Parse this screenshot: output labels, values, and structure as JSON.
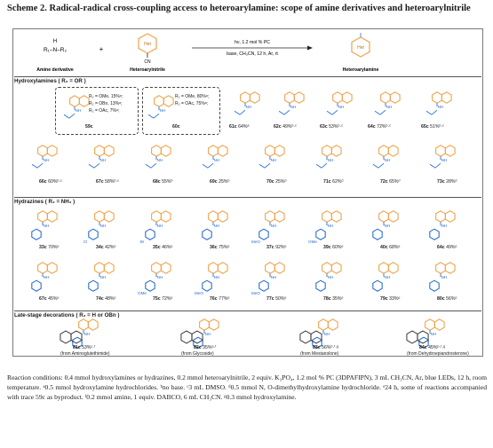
{
  "title": "Scheme 2. Radical-radical cross-coupling access to heteroarylamine: scope of amine derivatives and heteroarylnitrile",
  "header": {
    "amine_label": "Amine derivative",
    "nitrile_label": "Heteroarylnitrile",
    "product_label": "Heteroarylamine",
    "cond_top": "hν, 1.2 mol % PC",
    "cond_bottom": "base, CH₃CN, 12 h, Ar, rt",
    "plus": "+",
    "amine_formula": "R₁–N–R₂",
    "amine_h": "H",
    "cn": "CN",
    "het": "Het",
    "nh": "N"
  },
  "sections": {
    "hydroxylamines": "Hydroxylamines ( R₂ = OR )",
    "hydrazines": "Hydrazines ( R₂ = NH₂ )",
    "late_stage": "Late-stage decorations ( R₂ = H or OBn )"
  },
  "row1": [
    {
      "id": "59c",
      "r": [
        "R₂ = OMe, 15%ᵃ;",
        "R₂ = OBn, 13%ᵃ;",
        "R₂ = OAc, 7%ᵃ;"
      ]
    },
    {
      "id": "60c",
      "r": [
        "R₂ = OMe, 80%ᵃ;",
        "R₂ = OAc, 75%ᵃ;",
        ""
      ]
    },
    {
      "id": "61c",
      "y": "64%ᵃ"
    },
    {
      "id": "62c",
      "y": "49%ᵇ·ᶜ"
    },
    {
      "id": "63c",
      "y": "53%ᵇ·ᶜ"
    },
    {
      "id": "64c",
      "y": "72%ᵇ·ᶜ"
    },
    {
      "id": "65c",
      "y": "51%ᵇ·ᶜ"
    }
  ],
  "row2": [
    {
      "id": "66c",
      "y": "60%ᵇ·ᶜ"
    },
    {
      "id": "67c",
      "y": "58%ᵇ·ᶜ"
    },
    {
      "id": "68c",
      "y": "55%ᵇ"
    },
    {
      "id": "69c",
      "y": "25%ᵇ"
    },
    {
      "id": "70c",
      "y": "25%ᵈ"
    },
    {
      "id": "71c",
      "y": "62%ᵈ"
    },
    {
      "id": "72c",
      "y": "65%ᵈ"
    },
    {
      "id": "73c",
      "y": "28%ᵈ"
    }
  ],
  "row3": [
    {
      "id": "33c",
      "y": "70%ᵉ"
    },
    {
      "id": "34c",
      "y": "42%ᵉ"
    },
    {
      "id": "35c",
      "y": "46%ᵉ"
    },
    {
      "id": "36c",
      "y": "75%ᵉ"
    },
    {
      "id": "37c",
      "y": "92%ᵉ"
    },
    {
      "id": "39c",
      "y": "60%ᵉ"
    },
    {
      "id": "40c",
      "y": "68%ᵉ"
    },
    {
      "id": "64c",
      "y": "49%ᵉ"
    }
  ],
  "row4": [
    {
      "id": "67c",
      "y": "45%ᵉ"
    },
    {
      "id": "74c",
      "y": "48%ᵉ"
    },
    {
      "id": "75c",
      "y": "72%ᵉ"
    },
    {
      "id": "76c",
      "y": "77%ᵉ"
    },
    {
      "id": "77c",
      "y": "50%ᵉ"
    },
    {
      "id": "78c",
      "y": "35%ᵉ"
    },
    {
      "id": "79c",
      "y": "33%ᵉ"
    },
    {
      "id": "80c",
      "y": "56%ᵉ"
    }
  ],
  "row5": [
    {
      "id": "81c",
      "y": "53%ᶜ·ᶠ",
      "src": "(from Aminoglutethimide)"
    },
    {
      "id": "82c",
      "y": "35%ᵃ·ᶠ",
      "src": "(from Glycoside)"
    },
    {
      "id": "83c",
      "y": "56%ᵇ·ᶠ·ᵍ",
      "src": "(from Mestanolone)"
    },
    {
      "id": "84c",
      "y": "45%ᵇ·ᶠ·ᵍ",
      "src": "(from Dehydroepiandrosterone)"
    }
  ],
  "atoms": {
    "ome": "OMe",
    "meo": "MeO",
    "cl": "Cl",
    "br": "Br",
    "ho": "HO",
    "oh": "OH",
    "nh": "NH",
    "n": "N",
    "o": "O",
    "h": "H",
    "me": "Me"
  },
  "footnote": "Reaction conditions: 0.4 mmol hydroxylamines or hydrazines, 0.2 mmol heteroarylnitrile, 2 equiv. K₃PO₄, 1.2 mol % PC (3DPAFIPN), 3 mL CH₃CN, Ar, blue LEDs, 12 h, room temperature. ᵃ0.5 mmol hydroxylamine hydrochlorides. ᵇno base. ᶜ3 mL DMSO. ᵈ0.5 mmol N, O-dimethylhydroxylamine hydrochloride. ᵉ24 h, some of reactions accompanied with trace 59c as byproduct. ᶠ0.2 mmol amine, 1 equiv. DABCO, 6 mL CH₃CN. ᵍ0.3 mmol hydroxylamine.",
  "colors": {
    "orange": "#f0a24a",
    "blue": "#2b6fcf",
    "ink": "#222222",
    "rule": "#555555"
  }
}
